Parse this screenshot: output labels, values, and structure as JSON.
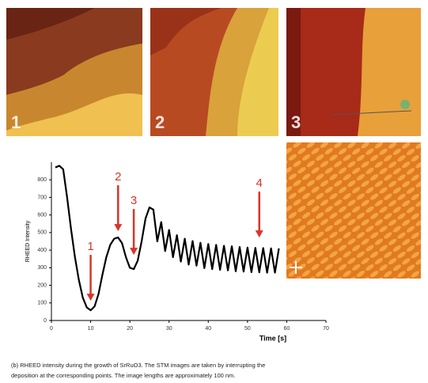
{
  "images": [
    {
      "label": "1"
    },
    {
      "label": "2"
    },
    {
      "label": "3"
    }
  ],
  "chart_data": {
    "type": "line",
    "x_label": "Time [s]",
    "y_label": "RHEED Intensity",
    "x": [
      1,
      2,
      3,
      4,
      5,
      6,
      7,
      8,
      9,
      10,
      11,
      12,
      13,
      14,
      15,
      16,
      17,
      18,
      19,
      20,
      21,
      22,
      23,
      24,
      25,
      26,
      27,
      28,
      29,
      30,
      31,
      32,
      33,
      34,
      35,
      36,
      37,
      38,
      39,
      40,
      41,
      42,
      43,
      44,
      45,
      46,
      47,
      48,
      49,
      50,
      51,
      52,
      53,
      54,
      55,
      56,
      57,
      58
    ],
    "series": [
      {
        "color": "#000000",
        "values": [
          870,
          880,
          860,
          700,
          520,
          360,
          230,
          130,
          75,
          58,
          80,
          150,
          260,
          360,
          430,
          465,
          472,
          440,
          360,
          300,
          292,
          340,
          450,
          580,
          643,
          630,
          450,
          560,
          395,
          515,
          360,
          485,
          335,
          465,
          318,
          452,
          312,
          442,
          298,
          435,
          292,
          430,
          288,
          425,
          285,
          422,
          280,
          418,
          278,
          415,
          275,
          413,
          274,
          412,
          272,
          410,
          272,
          410
        ]
      }
    ],
    "xlim": [
      0,
      70
    ],
    "xticks": [
      0,
      10,
      20,
      30,
      40,
      50,
      60,
      70
    ],
    "ylim": [
      0,
      900
    ],
    "yticks": [
      0,
      100,
      200,
      300,
      400,
      500,
      600,
      700,
      800
    ],
    "annotations": [
      {
        "text": "1",
        "x": 10,
        "y": 112,
        "color": "#d9342b"
      },
      {
        "text": "2",
        "x": 17,
        "y": 508,
        "color": "#d9342b"
      },
      {
        "text": "3",
        "x": 21,
        "y": 373,
        "color": "#d9342b"
      },
      {
        "text": "4",
        "x": 53,
        "y": 472,
        "color": "#d9342b"
      }
    ]
  },
  "caption": [
    "(b) RHEED intensity during the growth of SrRuO3. The STM images are taken by interrupting the",
    "deposition at the corresponding points. The image lengths are approximately 100 nm."
  ]
}
